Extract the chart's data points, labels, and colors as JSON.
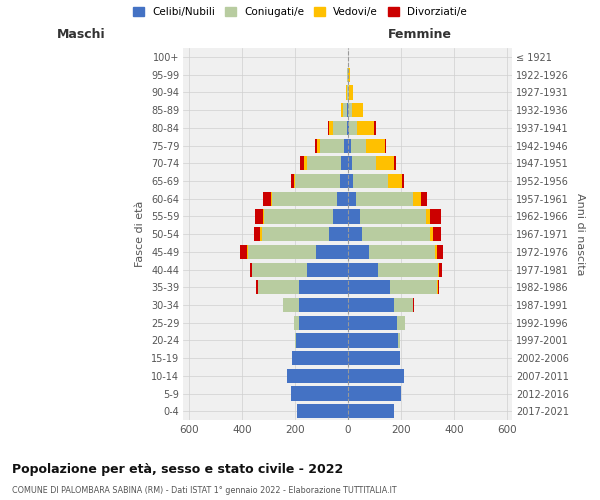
{
  "age_groups": [
    "0-4",
    "5-9",
    "10-14",
    "15-19",
    "20-24",
    "25-29",
    "30-34",
    "35-39",
    "40-44",
    "45-49",
    "50-54",
    "55-59",
    "60-64",
    "65-69",
    "70-74",
    "75-79",
    "80-84",
    "85-89",
    "90-94",
    "95-99",
    "100+"
  ],
  "birth_years": [
    "2017-2021",
    "2012-2016",
    "2007-2011",
    "2002-2006",
    "1997-2001",
    "1992-1996",
    "1987-1991",
    "1982-1986",
    "1977-1981",
    "1972-1976",
    "1967-1971",
    "1962-1966",
    "1957-1961",
    "1952-1956",
    "1947-1951",
    "1942-1946",
    "1937-1941",
    "1932-1936",
    "1927-1931",
    "1922-1926",
    "≤ 1921"
  ],
  "male": {
    "celibi": [
      190,
      215,
      230,
      210,
      195,
      185,
      185,
      185,
      155,
      120,
      70,
      55,
      40,
      30,
      25,
      15,
      5,
      2,
      0,
      0,
      0
    ],
    "coniugati": [
      0,
      0,
      0,
      2,
      5,
      20,
      60,
      155,
      205,
      255,
      255,
      260,
      245,
      170,
      130,
      90,
      50,
      18,
      5,
      2,
      1
    ],
    "vedovi": [
      0,
      0,
      0,
      0,
      0,
      0,
      0,
      0,
      0,
      5,
      5,
      5,
      5,
      5,
      10,
      10,
      15,
      5,
      1,
      0,
      0
    ],
    "divorziati": [
      0,
      0,
      0,
      0,
      0,
      0,
      0,
      5,
      10,
      25,
      25,
      30,
      30,
      10,
      15,
      10,
      5,
      0,
      0,
      0,
      0
    ]
  },
  "female": {
    "nubili": [
      175,
      200,
      210,
      195,
      190,
      185,
      175,
      160,
      115,
      80,
      55,
      45,
      30,
      20,
      15,
      10,
      5,
      2,
      0,
      0,
      0
    ],
    "coniugate": [
      0,
      0,
      0,
      2,
      8,
      30,
      70,
      175,
      225,
      250,
      255,
      250,
      215,
      130,
      90,
      60,
      30,
      15,
      5,
      2,
      0
    ],
    "vedove": [
      0,
      0,
      0,
      0,
      0,
      0,
      0,
      5,
      5,
      5,
      10,
      15,
      30,
      55,
      70,
      70,
      65,
      40,
      15,
      5,
      1
    ],
    "divorziate": [
      0,
      0,
      0,
      0,
      0,
      0,
      5,
      5,
      10,
      25,
      30,
      40,
      25,
      5,
      5,
      5,
      5,
      0,
      0,
      0,
      0
    ]
  },
  "colors": {
    "celibi": "#4472c4",
    "coniugati": "#b8cca0",
    "vedovi": "#ffc000",
    "divorziati": "#cc0000"
  },
  "xlim": 620,
  "title": "Popolazione per età, sesso e stato civile - 2022",
  "subtitle": "COMUNE DI PALOMBARA SABINA (RM) - Dati ISTAT 1° gennaio 2022 - Elaborazione TUTTITALIA.IT",
  "legend_labels": [
    "Celibi/Nubili",
    "Coniugati/e",
    "Vedovi/e",
    "Divorziati/e"
  ],
  "bg_color": "#ffffff",
  "grid_color": "#d0d0d0",
  "maschi_label": "Maschi",
  "femmine_label": "Femmine",
  "ylabel_left": "Fasce di età",
  "ylabel_right": "Anni di nascita"
}
